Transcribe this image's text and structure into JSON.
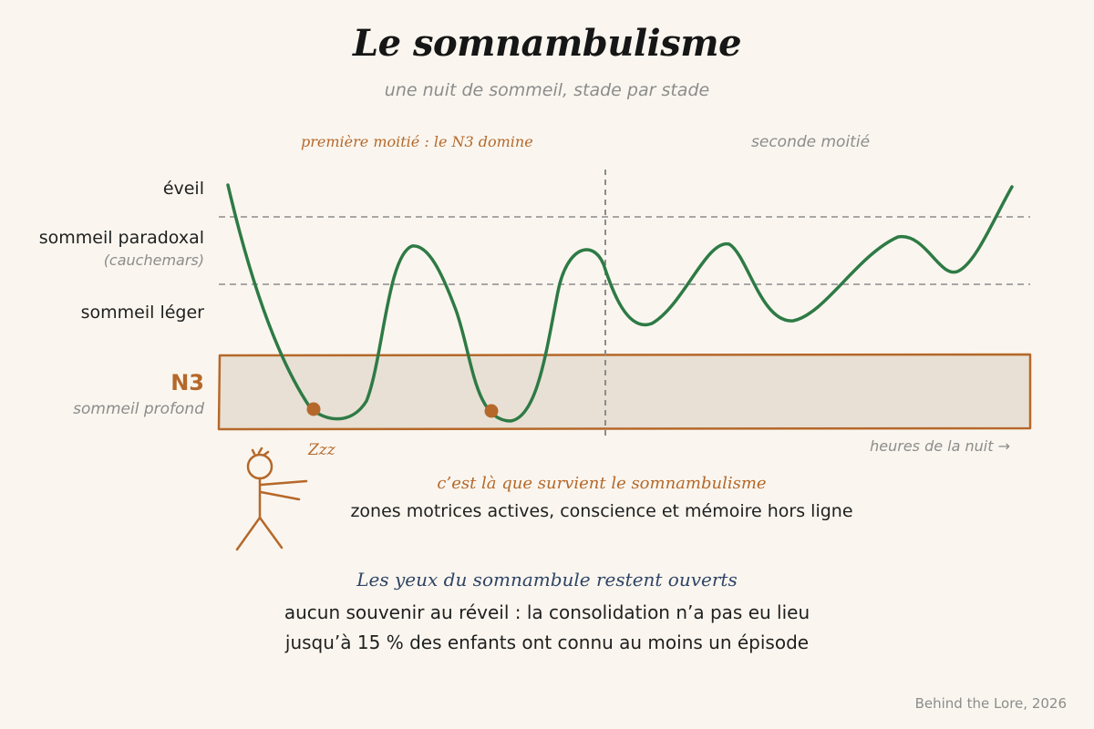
{
  "header": {
    "title": "Le somnambulisme",
    "subtitle": "une nuit de sommeil, stade par stade"
  },
  "halves": {
    "first": "première moitié : le N3 domine",
    "second": "seconde moitié"
  },
  "stages": {
    "wake": "éveil",
    "rem": "sommeil paradoxal",
    "rem_note": "(cauchemars)",
    "light": "sommeil léger",
    "deep": "N3",
    "deep_note": "sommeil profond"
  },
  "axis": {
    "x_label": "heures de la nuit →"
  },
  "markers": {
    "snore": "Zzz"
  },
  "callout": {
    "title": "c’est là que survient le somnambulisme",
    "text": "zones motrices actives, conscience et mémoire hors ligne"
  },
  "facts": {
    "heading": "Les yeux du somnambule restent ouverts",
    "lines": [
      "aucun souvenir au réveil : la consolidation n’a pas eu lieu",
      "jusqu’à 15 % des enfants ont connu au moins un épisode"
    ]
  },
  "credit": "Behind the Lore, 2026",
  "colors": {
    "background": "#faf6ef",
    "curve": "#2e7a45",
    "accent": "#b5682a",
    "deep_band": "#e8e0d4",
    "muted": "#8c8c8c",
    "navy": "#2f4466"
  },
  "chart_data": {
    "type": "line",
    "stage_levels": [
      "N3",
      "sommeil léger",
      "sommeil paradoxal",
      "éveil"
    ],
    "sleep_cycles_shown": 5,
    "n3_visits_marked": 2,
    "divider": "first half / second half of the night"
  }
}
